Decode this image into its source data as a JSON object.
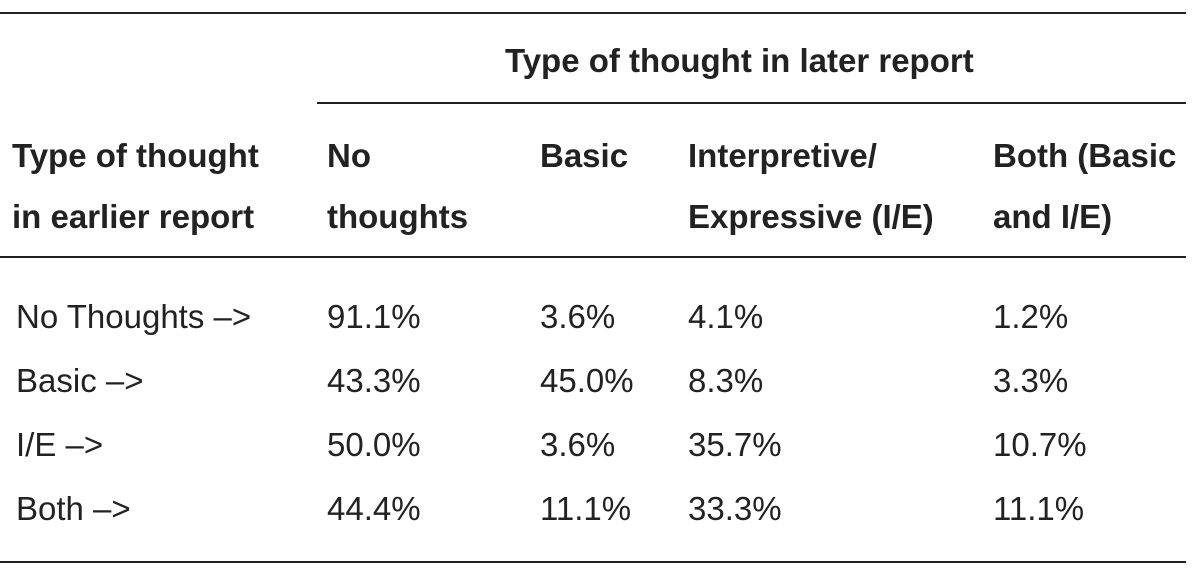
{
  "table": {
    "spanner_header": "Type of thought in later report",
    "row_header": [
      "Type of thought",
      "in earlier report"
    ],
    "column_headers": [
      [
        "No",
        "thoughts"
      ],
      [
        "Basic"
      ],
      [
        "Interpretive/",
        "Expressive (I/E)"
      ],
      [
        "Both (Basic",
        "and I/E)"
      ]
    ],
    "rows": [
      {
        "label": "No Thoughts –>",
        "values": [
          "91.1%",
          "3.6%",
          "4.1%",
          "1.2%"
        ]
      },
      {
        "label": "Basic –>",
        "values": [
          "43.3%",
          "45.0%",
          "8.3%",
          "3.3%"
        ]
      },
      {
        "label": "I/E –>",
        "values": [
          "50.0%",
          "3.6%",
          "35.7%",
          "10.7%"
        ]
      },
      {
        "label": "Both –>",
        "values": [
          "44.4%",
          "11.1%",
          "33.3%",
          "11.1%"
        ]
      }
    ]
  }
}
